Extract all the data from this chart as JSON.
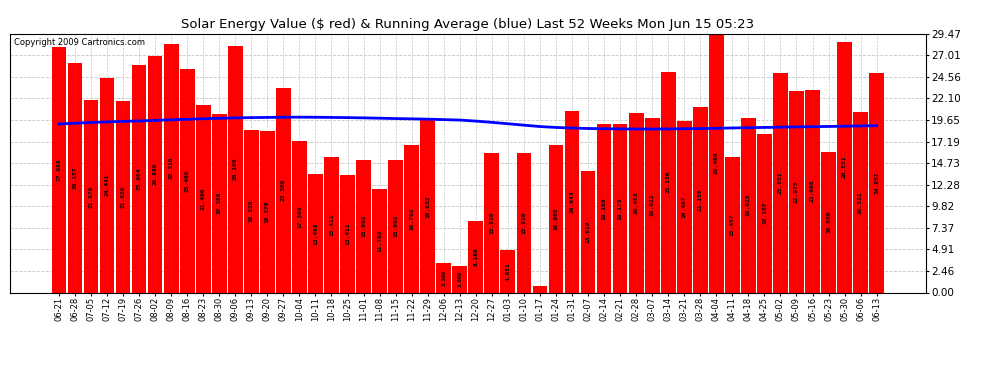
{
  "title": "Solar Energy Value ($ red) & Running Average (blue) Last 52 Weeks Mon Jun 15 05:23",
  "copyright": "Copyright 2009 Cartronics.com",
  "bar_color": "#FF0000",
  "line_color": "#0000FF",
  "bg_color": "#FFFFFF",
  "grid_color": "#C8C8C8",
  "ylim": [
    0,
    29.47
  ],
  "yticks": [
    0.0,
    2.46,
    4.91,
    7.37,
    9.82,
    12.28,
    14.73,
    17.19,
    19.65,
    22.1,
    24.56,
    27.01,
    29.47
  ],
  "categories": [
    "06-21",
    "06-28",
    "07-05",
    "07-12",
    "07-19",
    "07-26",
    "08-02",
    "08-09",
    "08-16",
    "08-23",
    "08-30",
    "09-06",
    "09-13",
    "09-20",
    "09-27",
    "10-04",
    "10-11",
    "10-18",
    "10-25",
    "11-01",
    "11-08",
    "11-15",
    "11-22",
    "11-29",
    "12-06",
    "12-13",
    "12-20",
    "12-27",
    "01-03",
    "01-10",
    "01-17",
    "01-24",
    "01-31",
    "02-07",
    "02-14",
    "02-21",
    "02-28",
    "03-07",
    "03-14",
    "03-21",
    "03-28",
    "04-04",
    "04-11",
    "04-18",
    "04-25",
    "05-02",
    "05-09",
    "05-16",
    "05-23",
    "05-30",
    "06-06",
    "06-13"
  ],
  "values": [
    27.999,
    26.157,
    21.876,
    24.441,
    21.82,
    25.904,
    26.99,
    28.31,
    25.406,
    21.406,
    20.386,
    28.106,
    18.52,
    18.379,
    23.309,
    17.309,
    13.468,
    15.411,
    13.411,
    15.092,
    11.792,
    15.092,
    16.792,
    19.632,
    3.369,
    3.009,
    8.166,
    15.91,
    4.851,
    15.91,
    0.772,
    16.805,
    20.643,
    13.819,
    19.168,
    19.175,
    20.453,
    19.922,
    25.156,
    19.497,
    21.156,
    29.469,
    15.457,
    19.925,
    18.107,
    25.051,
    22.975,
    23.088,
    16.05,
    28.551,
    20.532,
    24.951
  ],
  "running_avg": [
    19.2,
    19.28,
    19.36,
    19.43,
    19.49,
    19.54,
    19.6,
    19.67,
    19.73,
    19.79,
    19.84,
    19.89,
    19.92,
    19.94,
    19.96,
    19.97,
    19.96,
    19.94,
    19.92,
    19.89,
    19.85,
    19.81,
    19.78,
    19.74,
    19.69,
    19.64,
    19.52,
    19.38,
    19.22,
    19.06,
    18.9,
    18.8,
    18.73,
    18.68,
    18.65,
    18.63,
    18.62,
    18.62,
    18.63,
    18.65,
    18.67,
    18.7,
    18.74,
    18.77,
    18.8,
    18.83,
    18.86,
    18.89,
    18.91,
    18.94,
    18.97,
    19.0
  ],
  "label_fontsize": 4.5,
  "title_fontsize": 9.5,
  "copyright_fontsize": 6.0,
  "xtick_fontsize": 6.0,
  "ytick_fontsize": 7.5
}
